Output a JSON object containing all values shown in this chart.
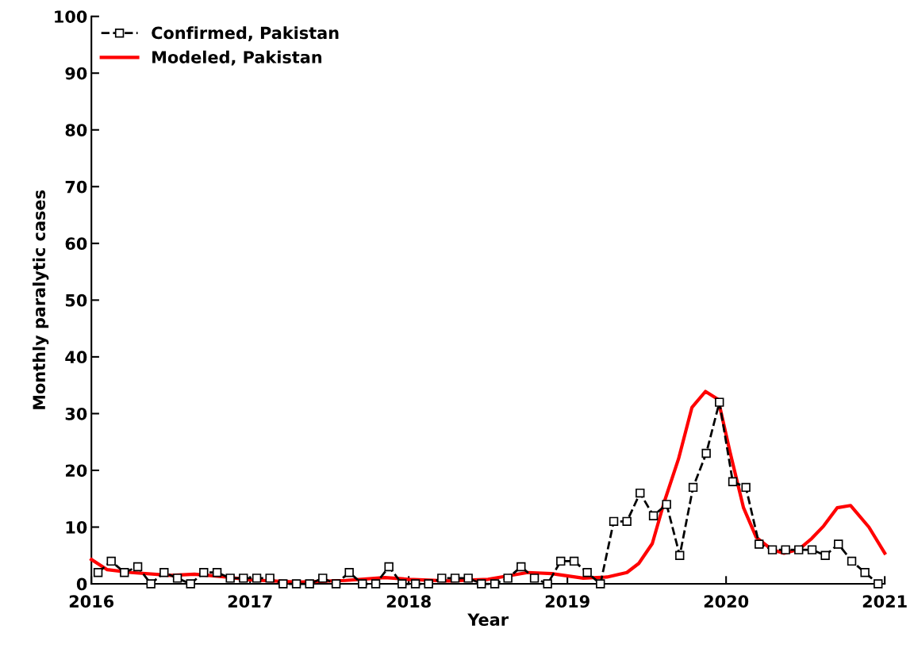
{
  "chart_data": {
    "type": "line",
    "xlabel": "Year",
    "ylabel": "Monthly paralytic cases",
    "xlim": [
      2016,
      2021
    ],
    "xticks": [
      2016,
      2017,
      2018,
      2019,
      2020,
      2021
    ],
    "ylim": [
      0,
      100
    ],
    "yticks": [
      0,
      10,
      20,
      30,
      40,
      50,
      60,
      70,
      80,
      90,
      100
    ],
    "grid": false,
    "legend": "top left",
    "series": [
      {
        "name": "Confirmed, Pakistan",
        "color": "#000000",
        "marker": "square",
        "line_style": "dashed",
        "x": [
          2016.042,
          2016.125,
          2016.208,
          2016.292,
          2016.375,
          2016.458,
          2016.542,
          2016.625,
          2016.708,
          2016.792,
          2016.875,
          2016.958,
          2017.042,
          2017.125,
          2017.208,
          2017.292,
          2017.375,
          2017.458,
          2017.542,
          2017.625,
          2017.708,
          2017.792,
          2017.875,
          2017.958,
          2018.042,
          2018.125,
          2018.208,
          2018.292,
          2018.375,
          2018.458,
          2018.542,
          2018.625,
          2018.708,
          2018.792,
          2018.875,
          2018.958,
          2019.042,
          2019.125,
          2019.208,
          2019.292,
          2019.375,
          2019.458,
          2019.542,
          2019.625,
          2019.708,
          2019.792,
          2019.875,
          2019.958,
          2020.042,
          2020.125,
          2020.208,
          2020.292,
          2020.375,
          2020.458,
          2020.542,
          2020.625,
          2020.708,
          2020.792,
          2020.875,
          2020.958
        ],
        "values": [
          2,
          4,
          2,
          3,
          0,
          2,
          1,
          0,
          2,
          2,
          1,
          1,
          1,
          1,
          0,
          0,
          0,
          1,
          0,
          2,
          0,
          0,
          3,
          0,
          0,
          0,
          1,
          1,
          1,
          0,
          0,
          1,
          3,
          1,
          0,
          4,
          4,
          2,
          0,
          11,
          11,
          16,
          12,
          14,
          5,
          17,
          23,
          32,
          18,
          17,
          7,
          6,
          6,
          6,
          6,
          5,
          7,
          4,
          2,
          0
        ]
      },
      {
        "name": "Modeled, Pakistan",
        "color": "#ff0000",
        "marker": "none",
        "line_style": "solid",
        "x": [
          2016.0,
          2016.1,
          2016.25,
          2016.5,
          2016.65,
          2016.85,
          2017.0,
          2017.3,
          2017.6,
          2017.85,
          2018.0,
          2018.25,
          2018.5,
          2018.75,
          2018.9,
          2019.1,
          2019.25,
          2019.375,
          2019.45,
          2019.535,
          2019.61,
          2019.7,
          2019.785,
          2019.87,
          2019.95,
          2020.025,
          2020.11,
          2020.19,
          2020.29,
          2020.365,
          2020.46,
          2020.54,
          2020.615,
          2020.7,
          2020.785,
          2020.9,
          2021.0
        ],
        "values": [
          4.3,
          2.5,
          2,
          1.5,
          1.7,
          1.2,
          0.7,
          0.3,
          0.6,
          1.1,
          0.8,
          0.5,
          0.8,
          2.0,
          1.8,
          1.0,
          1.2,
          2.0,
          3.6,
          7.1,
          14.4,
          22,
          31.1,
          33.9,
          32.5,
          23.2,
          13.4,
          8.2,
          6,
          5.4,
          6.1,
          8,
          10.2,
          13.4,
          13.8,
          10,
          5.4
        ]
      }
    ]
  }
}
